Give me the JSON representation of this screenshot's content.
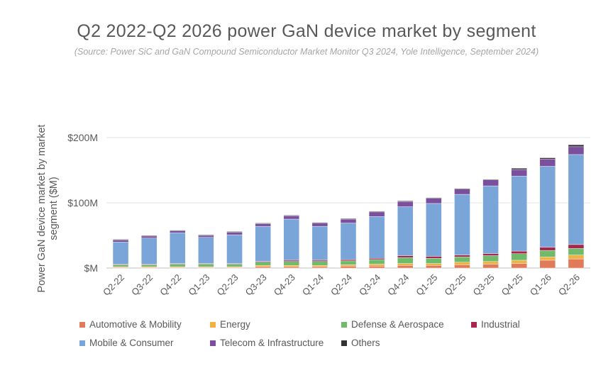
{
  "title": "Q2 2022-Q2 2026 power GaN device market by segment",
  "subtitle": "(Source: Power SiC and GaN Compound Semiconductor Market Monitor Q3 2024, Yole Intelligence, September 2024)",
  "chart_data": {
    "type": "bar",
    "stacked": true,
    "title": "Q2 2022-Q2 2026 power GaN device market by segment",
    "xlabel": "",
    "ylabel": "Power GaN device market by market segment ($M)",
    "ylim": [
      0,
      200
    ],
    "yticks": [
      0,
      100,
      200
    ],
    "ytick_labels": [
      "$M",
      "$100M",
      "$200M"
    ],
    "grid": true,
    "legend_position": "bottom",
    "categories": [
      "Q2-22",
      "Q3-22",
      "Q4-22",
      "Q1-23",
      "Q2-23",
      "Q3-23",
      "Q4-23",
      "Q1-24",
      "Q2-24",
      "Q3-24",
      "Q4-24",
      "Q1-25",
      "Q2-25",
      "Q3-25",
      "Q4-25",
      "Q1-26",
      "Q2-26"
    ],
    "series": [
      {
        "name": "Automotive & Mobility",
        "color": "#e07b5a",
        "values": [
          1,
          1,
          1,
          1,
          1,
          2,
          2,
          2,
          3,
          3,
          4,
          4,
          5,
          6,
          7,
          12,
          14
        ]
      },
      {
        "name": "Energy",
        "color": "#f2b243",
        "values": [
          1,
          1,
          1,
          1,
          1,
          2,
          2,
          2,
          2,
          3,
          3,
          3,
          4,
          4,
          5,
          5,
          6
        ]
      },
      {
        "name": "Defense & Aerospace",
        "color": "#6dbb6b",
        "values": [
          3,
          3,
          4,
          4,
          4,
          5,
          6,
          6,
          6,
          7,
          9,
          8,
          8,
          9,
          10,
          10,
          10
        ]
      },
      {
        "name": "Industrial",
        "color": "#a8284d",
        "values": [
          1,
          1,
          1,
          1,
          1,
          1,
          2,
          2,
          2,
          2,
          3,
          3,
          3,
          3,
          4,
          5,
          6
        ]
      },
      {
        "name": "Mobile & Consumer",
        "color": "#7aa5d8",
        "values": [
          34,
          40,
          47,
          40,
          44,
          54,
          63,
          52,
          56,
          64,
          75,
          81,
          93,
          104,
          115,
          124,
          138
        ]
      },
      {
        "name": "Telecom & Infrastructure",
        "color": "#7b4f9d",
        "values": [
          3,
          3,
          3,
          3,
          4,
          4,
          5,
          5,
          6,
          7,
          8,
          8,
          8,
          9,
          10,
          11,
          12
        ]
      },
      {
        "name": "Others",
        "color": "#333333",
        "values": [
          1,
          1,
          1,
          1,
          1,
          1,
          1,
          1,
          1,
          1,
          1,
          1,
          1,
          1,
          2,
          2,
          3
        ]
      }
    ]
  }
}
